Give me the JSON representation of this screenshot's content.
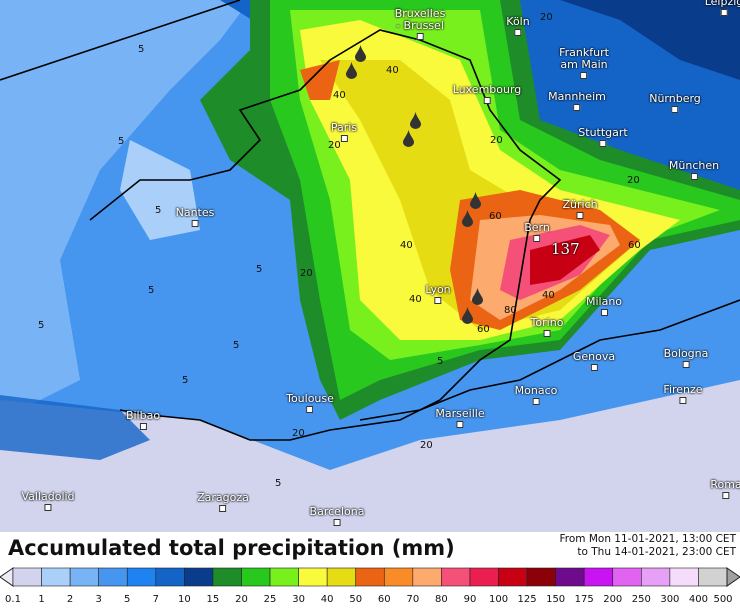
{
  "title": "Accumulated total precipitation (mm)",
  "period": {
    "from": "From Mon 11-01-2021, 13:00 CET",
    "to": "to Thu 14-01-2021, 23:00 CET"
  },
  "peak_value": "137",
  "cities": [
    {
      "name": "Bruxelles\n- Brussel"
    },
    {
      "name": "Köln"
    },
    {
      "name": "Frankfurt\nam Main"
    },
    {
      "name": "Luxembourg"
    },
    {
      "name": "Mannheim"
    },
    {
      "name": "Nürnberg"
    },
    {
      "name": "Stuttgart"
    },
    {
      "name": "München"
    },
    {
      "name": "Paris"
    },
    {
      "name": "Nantes"
    },
    {
      "name": "Zürich"
    },
    {
      "name": "Bern"
    },
    {
      "name": "Lyon"
    },
    {
      "name": "Milano"
    },
    {
      "name": "Torino"
    },
    {
      "name": "Genova"
    },
    {
      "name": "Bologna"
    },
    {
      "name": "Monaco"
    },
    {
      "name": "Firenze"
    },
    {
      "name": "Toulouse"
    },
    {
      "name": "Marseille"
    },
    {
      "name": "Bilbao"
    },
    {
      "name": "Valladolid"
    },
    {
      "name": "Zaragoza"
    },
    {
      "name": "Barcelona"
    },
    {
      "name": "Roma"
    },
    {
      "name": "Leipzig"
    }
  ],
  "isolines": [
    "5",
    "5",
    "5",
    "5",
    "5",
    "5",
    "5",
    "5",
    "20",
    "20",
    "20",
    "20",
    "20",
    "40",
    "40",
    "40",
    "40",
    "60",
    "60",
    "60",
    "80",
    "40",
    "20",
    "5",
    "20",
    "5"
  ],
  "legend": {
    "labels": [
      "0.1",
      "1",
      "2",
      "3",
      "5",
      "7",
      "10",
      "15",
      "20",
      "25",
      "30",
      "40",
      "50",
      "60",
      "70",
      "80",
      "90",
      "100",
      "125",
      "150",
      "175",
      "200",
      "250",
      "300",
      "400",
      "500"
    ],
    "colors": [
      "#d2d4ee",
      "#aad0fa",
      "#78b4f5",
      "#4696f0",
      "#1e82f0",
      "#1464c8",
      "#0a3c8c",
      "#1e8c28",
      "#28c81e",
      "#78f01e",
      "#fafa3c",
      "#e6dc14",
      "#eb6414",
      "#fa8c28",
      "#fcaa6e",
      "#f55078",
      "#eb1e50",
      "#c80014",
      "#8c000a",
      "#6e0a8c",
      "#c814f0",
      "#e164f0",
      "#e6a0f5",
      "#f5dcfa",
      "#d2d2d2"
    ],
    "below_color": "#ececf4",
    "above_color": "#a0a0a0"
  },
  "drop_icon": "raindrop-icon"
}
